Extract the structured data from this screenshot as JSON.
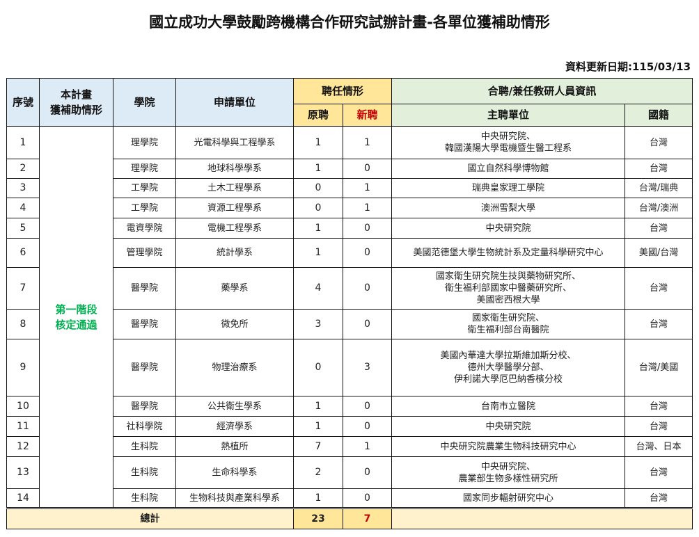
{
  "title": "國立成功大學鼓勵跨機構合作研究試辦計畫-各單位獲補助情形",
  "update_date": "資料更新日期:115/03/13",
  "headers": {
    "seq": "序號",
    "status": "本計畫\n獲補助情形",
    "college": "學院",
    "unit": "申請單位",
    "hire": "聘任情形",
    "original": "原聘",
    "new": "新聘",
    "joint": "合聘/兼任教研人員資訊",
    "host": "主聘單位",
    "nationality": "國籍"
  },
  "status_label": "第一階段\n核定通過",
  "rows": [
    {
      "seq": "1",
      "college": "理學院",
      "unit": "光電科學與工程學系",
      "original": "1",
      "new": "1",
      "host": "中央研究院、\n韓國漢陽大學電機暨生醫工程系",
      "nationality": "台灣"
    },
    {
      "seq": "2",
      "college": "理學院",
      "unit": "地球科學學系",
      "original": "1",
      "new": "0",
      "host": "國立自然科學博物館",
      "nationality": "台灣"
    },
    {
      "seq": "3",
      "college": "工學院",
      "unit": "土木工程學系",
      "original": "0",
      "new": "1",
      "host": "瑞典皇家理工學院",
      "nationality": "台灣/瑞典"
    },
    {
      "seq": "4",
      "college": "工學院",
      "unit": "資源工程學系",
      "original": "0",
      "new": "1",
      "host": "澳洲雪梨大學",
      "nationality": "台灣/澳洲"
    },
    {
      "seq": "5",
      "college": "電資學院",
      "unit": "電機工程學系",
      "original": "1",
      "new": "0",
      "host": "中央研究院",
      "nationality": "台灣"
    },
    {
      "seq": "6",
      "college": "管理學院",
      "unit": "統計學系",
      "original": "1",
      "new": "0",
      "host": "美國范德堡大學生物統計系及定量科學研究中心",
      "nationality": "美國/台灣"
    },
    {
      "seq": "7",
      "college": "醫學院",
      "unit": "藥學系",
      "original": "4",
      "new": "0",
      "host": "國家衛生研究院生技與藥物研究所、\n衛生福利部國家中醫藥研究所、\n美國密西根大學",
      "nationality": "台灣"
    },
    {
      "seq": "8",
      "college": "醫學院",
      "unit": "微免所",
      "original": "3",
      "new": "0",
      "host": "國家衛生研究院、\n衛生福利部台南醫院",
      "nationality": "台灣"
    },
    {
      "seq": "9",
      "college": "醫學院",
      "unit": "物理治療系",
      "original": "0",
      "new": "3",
      "host": "美國內華達大學拉斯維加斯分校、\n德州大學醫學分部、\n伊利諾大學厄巴納香檳分校",
      "nationality": "台灣/美國"
    },
    {
      "seq": "10",
      "college": "醫學院",
      "unit": "公共衛生學系",
      "original": "1",
      "new": "0",
      "host": "台南市立醫院",
      "nationality": "台灣"
    },
    {
      "seq": "11",
      "college": "社科學院",
      "unit": "經濟學系",
      "original": "1",
      "new": "0",
      "host": "中央研究院",
      "nationality": "台灣"
    },
    {
      "seq": "12",
      "college": "生科院",
      "unit": "熱植所",
      "original": "7",
      "new": "1",
      "host": "中央研究院農業生物科技研究中心",
      "nationality": "台灣、日本"
    },
    {
      "seq": "13",
      "college": "生科院",
      "unit": "生命科學系",
      "original": "2",
      "new": "0",
      "host": "中央研究院、\n農業部生物多樣性研究所",
      "nationality": "台灣"
    },
    {
      "seq": "14",
      "college": "生科院",
      "unit": "生物科技與產業科學系",
      "original": "1",
      "new": "0",
      "host": "國家同步輻射研究中心",
      "nationality": "台灣"
    }
  ],
  "total": {
    "label": "總計",
    "original": "23",
    "new": "7"
  },
  "colors": {
    "header_blue": "#ddebf7",
    "header_yellow": "#ffe699",
    "header_green": "#e2efda",
    "total_bg": "#fff2cc",
    "stage_green": "#00b050",
    "new_red": "#c00000"
  }
}
